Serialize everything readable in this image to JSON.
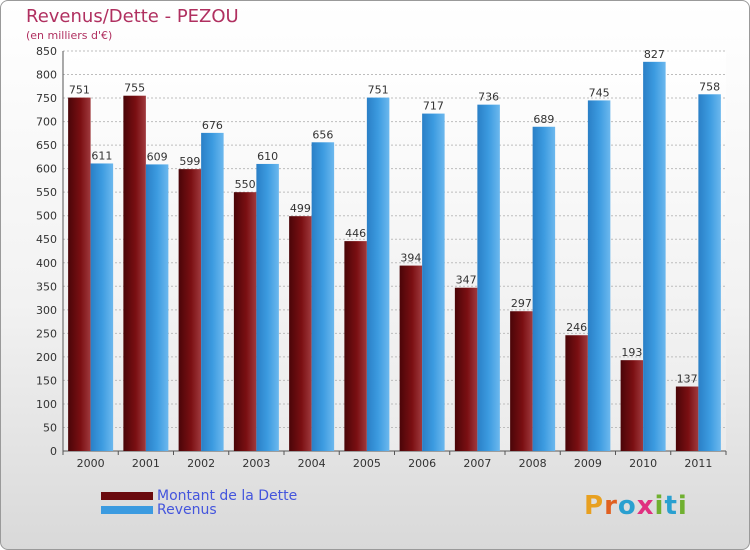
{
  "title": "Revenus/Dette - PEZOU",
  "subtitle": "(en milliers d'€)",
  "colors": {
    "debt": "#7a0f12",
    "revenue": "#3c9be0",
    "title": "#b03060"
  },
  "logo": {
    "text": "Proxiti",
    "letters": [
      "P",
      "r",
      "o",
      "x",
      "i",
      "t",
      "i"
    ],
    "colors": [
      "#e8a020",
      "#e06020",
      "#2aa0d0",
      "#e03080",
      "#70b030",
      "#2aa0d0",
      "#70b030"
    ]
  },
  "chart_data": {
    "type": "bar",
    "categories": [
      "2000",
      "2001",
      "2002",
      "2003",
      "2004",
      "2005",
      "2006",
      "2007",
      "2008",
      "2009",
      "2010",
      "2011"
    ],
    "series": [
      {
        "name": "Montant de la Dette",
        "values": [
          751,
          755,
          599,
          550,
          499,
          446,
          394,
          347,
          297,
          246,
          193,
          137
        ]
      },
      {
        "name": "Revenus",
        "values": [
          611,
          609,
          676,
          610,
          656,
          751,
          717,
          736,
          689,
          745,
          827,
          758
        ]
      }
    ],
    "y_ticks": [
      0,
      50,
      100,
      150,
      200,
      250,
      300,
      350,
      400,
      450,
      500,
      550,
      600,
      650,
      700,
      750,
      800,
      850
    ],
    "ylim": [
      0,
      850
    ],
    "grid": true,
    "legend": "bottom-left"
  }
}
